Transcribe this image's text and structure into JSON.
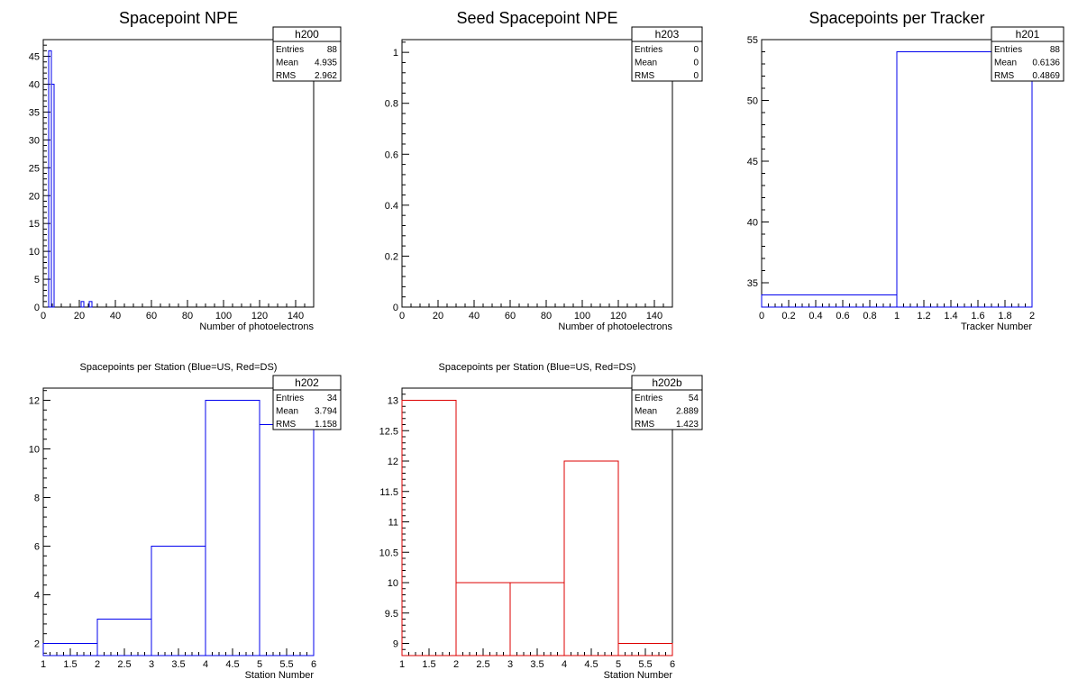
{
  "chart_data": [
    {
      "type": "histogram",
      "title": "Spacepoint NPE",
      "xlabel": "Number of photoelectrons",
      "ylabel": "",
      "xlim": [
        0,
        150
      ],
      "ylim": [
        0,
        48
      ],
      "xticks": [
        0,
        20,
        40,
        60,
        80,
        100,
        120,
        140
      ],
      "yticks": [
        0,
        5,
        10,
        15,
        20,
        25,
        30,
        35,
        40,
        45
      ],
      "line_color": "#0000ee",
      "bins": [
        {
          "x0": 3,
          "x1": 4.5,
          "y": 46
        },
        {
          "x0": 4.5,
          "x1": 6,
          "y": 40
        },
        {
          "x0": 21,
          "x1": 22.5,
          "y": 1
        },
        {
          "x0": 25.5,
          "x1": 27,
          "y": 1
        }
      ],
      "stats": {
        "name": "h200",
        "rows": [
          [
            "Entries",
            "88"
          ],
          [
            "Mean",
            "4.935"
          ],
          [
            "RMS",
            "2.962"
          ]
        ]
      }
    },
    {
      "type": "histogram",
      "title": "Seed Spacepoint NPE",
      "xlabel": "Number of photoelectrons",
      "ylabel": "",
      "xlim": [
        0,
        150
      ],
      "ylim": [
        0,
        1.05
      ],
      "xticks": [
        0,
        20,
        40,
        60,
        80,
        100,
        120,
        140
      ],
      "yticks": [
        0,
        0.2,
        0.4,
        0.6,
        0.8,
        1
      ],
      "line_color": "#0000ee",
      "bins": [],
      "stats": {
        "name": "h203",
        "rows": [
          [
            "Entries",
            "0"
          ],
          [
            "Mean",
            "0"
          ],
          [
            "RMS",
            "0"
          ]
        ]
      }
    },
    {
      "type": "histogram",
      "title": "Spacepoints per Tracker",
      "xlabel": "Tracker Number",
      "ylabel": "",
      "xlim": [
        0,
        2
      ],
      "ylim": [
        33,
        55
      ],
      "xticks": [
        0,
        0.2,
        0.4,
        0.6,
        0.8,
        1,
        1.2,
        1.4,
        1.6,
        1.8,
        2
      ],
      "yticks": [
        35,
        40,
        45,
        50,
        55
      ],
      "line_color": "#0000ee",
      "bins": [
        {
          "x0": 0,
          "x1": 1,
          "y": 34
        },
        {
          "x0": 1,
          "x1": 2,
          "y": 54
        }
      ],
      "stats": {
        "name": "h201",
        "rows": [
          [
            "Entries",
            "88"
          ],
          [
            "Mean",
            "0.6136"
          ],
          [
            "RMS",
            "0.4869"
          ]
        ]
      }
    },
    {
      "type": "histogram",
      "title": "Spacepoints per Station (Blue=US, Red=DS)",
      "xlabel": "Station Number",
      "ylabel": "",
      "xlim": [
        1,
        6
      ],
      "ylim": [
        1.5,
        12.5
      ],
      "xticks": [
        1,
        1.5,
        2,
        2.5,
        3,
        3.5,
        4,
        4.5,
        5,
        5.5,
        6
      ],
      "yticks": [
        2,
        4,
        6,
        8,
        10,
        12
      ],
      "line_color": "#0000ee",
      "bins": [
        {
          "x0": 1,
          "x1": 2,
          "y": 2
        },
        {
          "x0": 2,
          "x1": 3,
          "y": 3
        },
        {
          "x0": 3,
          "x1": 4,
          "y": 6
        },
        {
          "x0": 4,
          "x1": 5,
          "y": 12
        },
        {
          "x0": 5,
          "x1": 6,
          "y": 11
        }
      ],
      "stats": {
        "name": "h202",
        "rows": [
          [
            "Entries",
            "34"
          ],
          [
            "Mean",
            "3.794"
          ],
          [
            "RMS",
            "1.158"
          ]
        ]
      }
    },
    {
      "type": "histogram",
      "title": "Spacepoints per Station (Blue=US, Red=DS)",
      "xlabel": "Station Number",
      "ylabel": "",
      "xlim": [
        1,
        6
      ],
      "ylim": [
        8.8,
        13.2
      ],
      "xticks": [
        1,
        1.5,
        2,
        2.5,
        3,
        3.5,
        4,
        4.5,
        5,
        5.5,
        6
      ],
      "yticks": [
        9,
        9.5,
        10,
        10.5,
        11,
        11.5,
        12,
        12.5,
        13
      ],
      "line_color": "#dd0000",
      "bins": [
        {
          "x0": 1,
          "x1": 2,
          "y": 13
        },
        {
          "x0": 2,
          "x1": 3,
          "y": 10
        },
        {
          "x0": 3,
          "x1": 4,
          "y": 10
        },
        {
          "x0": 4,
          "x1": 5,
          "y": 12
        },
        {
          "x0": 5,
          "x1": 6,
          "y": 9
        }
      ],
      "stats": {
        "name": "h202b",
        "rows": [
          [
            "Entries",
            "54"
          ],
          [
            "Mean",
            "2.889"
          ],
          [
            "RMS",
            "1.423"
          ]
        ]
      }
    }
  ]
}
